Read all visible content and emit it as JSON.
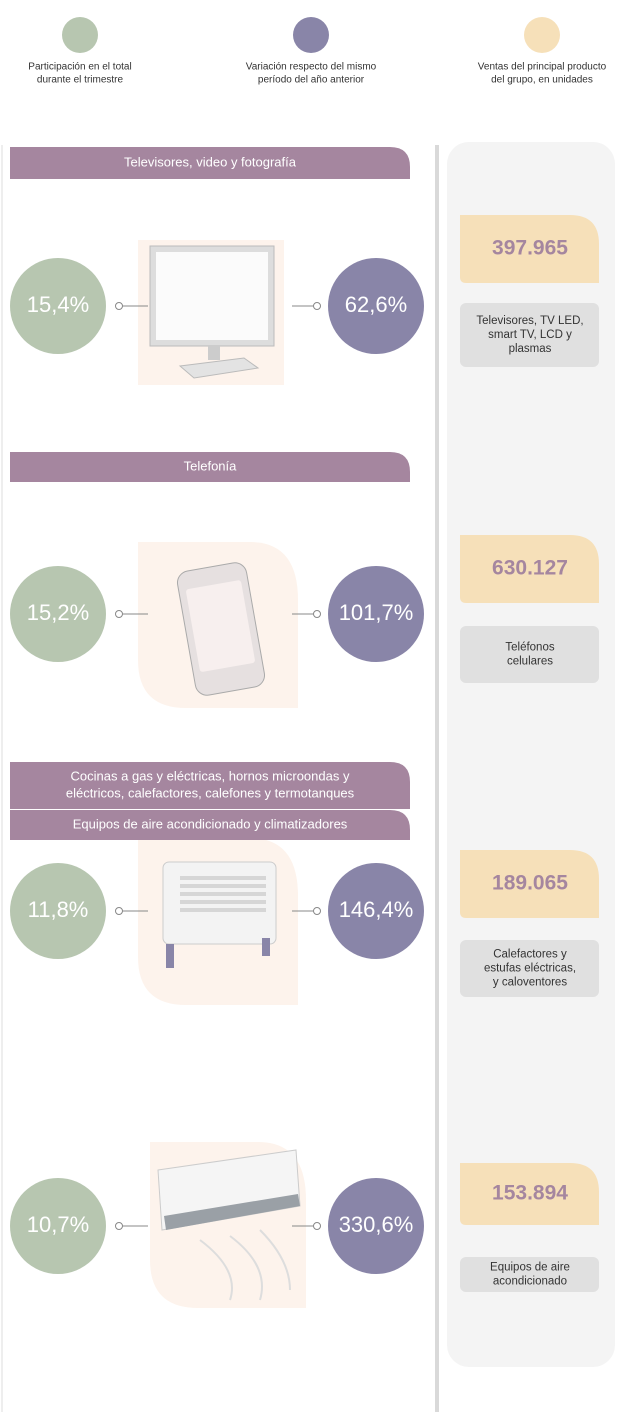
{
  "legend": [
    {
      "color": "#b7c6b0",
      "label": [
        "Participación en el total",
        "durante el trimestre"
      ]
    },
    {
      "color": "#8985a8",
      "label": [
        "Variación respecto del mismo",
        "período del año anterior"
      ]
    },
    {
      "color": "#f6e0b9",
      "label": [
        "Ventas del principal producto",
        "del grupo, en unidades"
      ]
    }
  ],
  "sections": [
    {
      "title": [
        "Televisores, video y fotografía"
      ],
      "share": "15,4%",
      "variation": "62,6%",
      "units": "397.965",
      "product": [
        "Televisores, TV LED,",
        "smart TV, LCD y",
        "plasmas"
      ]
    },
    {
      "title": [
        "Telefonía"
      ],
      "share": "15,2%",
      "variation": "101,7%",
      "units": "630.127",
      "product": [
        "Teléfonos",
        "celulares"
      ]
    },
    {
      "title": [
        "Cocinas a gas y eléctricas, hornos microondas y",
        "eléctricos, calefactores, calefones y termotanques"
      ],
      "share": "11,8%",
      "variation": "146,4%",
      "units": "189.065",
      "product": [
        "Calefactores y",
        "estufas eléctricas,",
        "y caloventores"
      ]
    },
    {
      "title": [
        "Equipos de aire acondicionado y climatizadores"
      ],
      "share": "10,7%",
      "variation": "330,6%",
      "units": "153.894",
      "product": [
        "Equipos de aire",
        "acondicionado"
      ]
    }
  ]
}
